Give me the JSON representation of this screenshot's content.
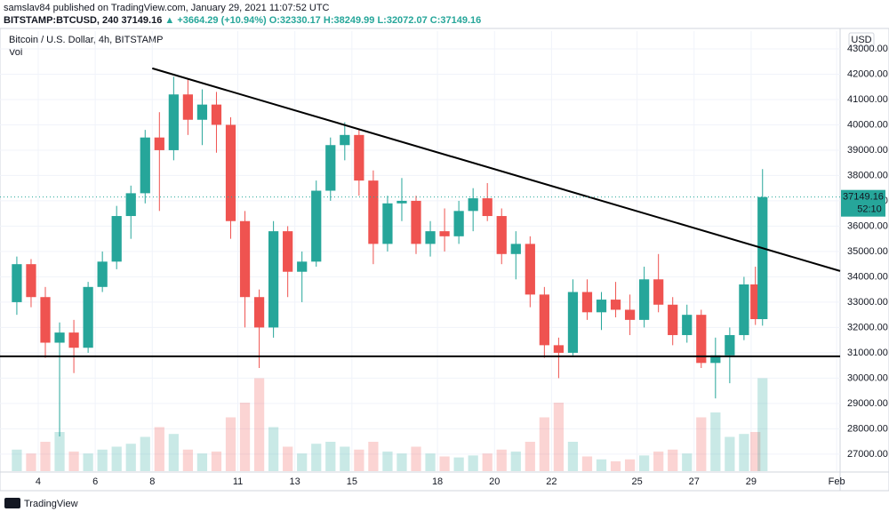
{
  "header": {
    "publisher": "samslav84 published on TradingView.com, January 29, 2021 11:07:52 UTC",
    "symbol": "BITSTAMP:BTCUSD, 240",
    "change": "▲ +3664.29 (+10.94%)",
    "open": "O:32330.17",
    "high": "H:38249.99",
    "low": "L:32072.07",
    "close": "C:37149.16"
  },
  "footer": {
    "brand": "TradingView"
  },
  "chart_data": {
    "type": "candlestick",
    "title": "Bitcoin / U.S. Dollar, 4h, BITSTAMP",
    "volume_label": "Vol",
    "unit": "USD",
    "countdown": "52:10",
    "up_color": "#26a69a",
    "down_color": "#ef5350",
    "grid": true,
    "xlim": [
      2.66,
      32.12
    ],
    "ylim": [
      26330,
      43700
    ],
    "vlim": [
      0,
      100
    ],
    "xticks": [
      4,
      6,
      8,
      11,
      13,
      15,
      18,
      20,
      22,
      25,
      27,
      29,
      {
        "value": 32,
        "label": "Feb"
      }
    ],
    "yticks": [
      {
        "value": 27000,
        "label": "27000.00"
      },
      {
        "value": 28000,
        "label": "28000.00"
      },
      {
        "value": 29000,
        "label": "29000.00"
      },
      {
        "value": 30000,
        "label": "30000.00"
      },
      {
        "value": 31000,
        "label": "31000.00"
      },
      {
        "value": 32000,
        "label": "32000.00"
      },
      {
        "value": 33000,
        "label": "33000.00"
      },
      {
        "value": 34000,
        "label": "34000.00"
      },
      {
        "value": 35000,
        "label": "35000.00"
      },
      {
        "value": 36000,
        "label": "36000.00"
      },
      {
        "value": 37000,
        "label": "37000.00"
      },
      {
        "value": 38000,
        "label": "38000.00"
      },
      {
        "value": 39000,
        "label": "39000.00"
      },
      {
        "value": 40000,
        "label": "40000.00"
      },
      {
        "value": 41000,
        "label": "41000.00"
      },
      {
        "value": 42000,
        "label": "42000.00"
      },
      {
        "value": 43000,
        "label": "43000.00"
      }
    ],
    "x": [
      3.25,
      3.75,
      4.25,
      4.75,
      5.25,
      5.75,
      6.25,
      6.75,
      7.25,
      7.75,
      8.25,
      8.75,
      9.25,
      9.75,
      10.25,
      10.75,
      11.25,
      11.75,
      12.25,
      12.75,
      13.25,
      13.75,
      14.25,
      14.75,
      15.25,
      15.75,
      16.25,
      16.75,
      17.25,
      17.75,
      18.25,
      18.75,
      19.25,
      19.75,
      20.25,
      20.75,
      21.25,
      21.75,
      22.25,
      22.75,
      23.25,
      23.75,
      24.25,
      24.75,
      25.25,
      25.75,
      26.25,
      26.75,
      27.25,
      27.75,
      28.25,
      28.75,
      29.15,
      29.4
    ],
    "open": [
      33000,
      34500,
      33200,
      31400,
      31800,
      31200,
      33600,
      34600,
      36400,
      37300,
      39500,
      39000,
      41200,
      40200,
      40800,
      40000,
      36200,
      33200,
      32000,
      35800,
      34200,
      34600,
      37400,
      39200,
      39600,
      37800,
      35300,
      36900,
      37000,
      35300,
      35800,
      35600,
      36600,
      37100,
      36400,
      34900,
      35300,
      33300,
      31300,
      31000,
      33400,
      32600,
      33100,
      32700,
      32300,
      33900,
      32900,
      31700,
      32500,
      30600,
      30900,
      31700,
      33700,
      32330.17
    ],
    "high": [
      34800,
      34700,
      33600,
      32200,
      32300,
      33800,
      35000,
      36800,
      37600,
      39800,
      40500,
      41900,
      41800,
      41400,
      41300,
      40300,
      36600,
      33500,
      36200,
      36000,
      35000,
      37800,
      39500,
      40100,
      39800,
      38200,
      37200,
      37900,
      37200,
      36200,
      36700,
      37000,
      37500,
      37700,
      36700,
      35800,
      35600,
      33600,
      31600,
      33900,
      33900,
      33400,
      33800,
      33300,
      34400,
      34900,
      33200,
      32900,
      32700,
      31600,
      32000,
      34000,
      34400,
      38249.99
    ],
    "low": [
      32500,
      32800,
      30800,
      27700,
      30200,
      31000,
      33400,
      34300,
      35500,
      36900,
      36600,
      38600,
      39600,
      39200,
      38900,
      35500,
      32000,
      30400,
      31600,
      33200,
      33000,
      34400,
      37000,
      38600,
      37200,
      34500,
      35000,
      36200,
      34900,
      34800,
      35000,
      35300,
      35800,
      36200,
      34500,
      33900,
      32800,
      30800,
      30000,
      30900,
      32300,
      31900,
      32400,
      31700,
      32000,
      32600,
      31300,
      31400,
      30400,
      29200,
      29800,
      31500,
      32100,
      32072.07
    ],
    "close": [
      34500,
      33200,
      31400,
      31800,
      31200,
      33600,
      34600,
      36400,
      37300,
      39500,
      39000,
      41200,
      40200,
      40800,
      40000,
      36200,
      33200,
      32000,
      35800,
      34200,
      34600,
      37400,
      39200,
      39600,
      37800,
      35300,
      36900,
      37000,
      35300,
      35800,
      35600,
      36600,
      37100,
      36400,
      34900,
      35300,
      33300,
      31300,
      31000,
      33400,
      32600,
      33100,
      32700,
      32300,
      33900,
      32900,
      31700,
      32500,
      30600,
      30900,
      31700,
      33700,
      32330.17,
      37149.16
    ],
    "volume": [
      22,
      18,
      30,
      40,
      20,
      18,
      22,
      25,
      28,
      35,
      45,
      38,
      22,
      18,
      20,
      55,
      70,
      95,
      45,
      25,
      18,
      28,
      30,
      25,
      22,
      30,
      20,
      18,
      25,
      18,
      15,
      14,
      16,
      18,
      22,
      20,
      30,
      55,
      70,
      30,
      15,
      12,
      10,
      12,
      16,
      20,
      22,
      18,
      55,
      60,
      35,
      38,
      40,
      95
    ],
    "lines": [
      {
        "x": [
          8,
          32.12
        ],
        "y": [
          42230,
          34230
        ]
      },
      {
        "x": [
          2.66,
          32.12
        ],
        "y": [
          30860,
          30860
        ]
      }
    ]
  }
}
